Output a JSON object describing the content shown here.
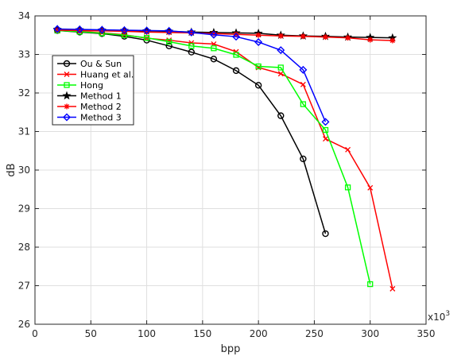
{
  "chart_data": {
    "type": "line",
    "xlabel": "bpp",
    "ylabel": "dB",
    "x_multiplier_label": "x10",
    "x_multiplier_exp": "3",
    "xlim": [
      0,
      350
    ],
    "ylim": [
      26,
      34
    ],
    "xticks": [
      0,
      50,
      100,
      150,
      200,
      250,
      300,
      350
    ],
    "yticks": [
      26,
      27,
      28,
      29,
      30,
      31,
      32,
      33,
      34
    ],
    "grid": true,
    "legend_position": "top-left",
    "series": [
      {
        "name": "Ou & Sun",
        "color": "#000000",
        "marker": "circle",
        "x": [
          20,
          40,
          60,
          80,
          100,
          120,
          140,
          160,
          180,
          200,
          220,
          240,
          260
        ],
        "y": [
          33.62,
          33.58,
          33.54,
          33.47,
          33.37,
          33.22,
          33.06,
          32.88,
          32.58,
          32.2,
          31.41,
          30.29,
          28.35
        ]
      },
      {
        "name": "Huang et al.",
        "color": "#ff0000",
        "marker": "x",
        "x": [
          20,
          40,
          60,
          80,
          100,
          120,
          140,
          160,
          180,
          200,
          220,
          240,
          260,
          280,
          300,
          320
        ],
        "y": [
          33.63,
          33.6,
          33.56,
          33.51,
          33.42,
          33.37,
          33.3,
          33.27,
          33.07,
          32.66,
          32.5,
          32.22,
          30.81,
          30.53,
          29.54,
          26.92
        ]
      },
      {
        "name": "Hong",
        "color": "#00ff00",
        "marker": "square",
        "x": [
          20,
          40,
          60,
          80,
          100,
          120,
          140,
          160,
          180,
          200,
          220,
          240,
          260,
          280,
          300
        ],
        "y": [
          33.62,
          33.59,
          33.55,
          33.5,
          33.43,
          33.33,
          33.22,
          33.16,
          32.99,
          32.69,
          32.66,
          31.71,
          31.04,
          29.55,
          27.04
        ]
      },
      {
        "name": "Method 1",
        "color": "#000000",
        "marker": "star",
        "x": [
          20,
          40,
          60,
          80,
          100,
          120,
          140,
          160,
          180,
          200,
          220,
          240,
          260,
          280,
          300,
          320
        ],
        "y": [
          33.65,
          33.64,
          33.63,
          33.62,
          33.61,
          33.6,
          33.58,
          33.57,
          33.56,
          33.55,
          33.5,
          33.48,
          33.47,
          33.45,
          33.44,
          33.43
        ]
      },
      {
        "name": "Method 2",
        "color": "#ff0000",
        "marker": "asterisk",
        "x": [
          20,
          40,
          60,
          80,
          100,
          120,
          140,
          160,
          180,
          200,
          220,
          240,
          260,
          280,
          300,
          320
        ],
        "y": [
          33.63,
          33.62,
          33.61,
          33.6,
          33.58,
          33.57,
          33.56,
          33.54,
          33.52,
          33.5,
          33.48,
          33.47,
          33.45,
          33.43,
          33.38,
          33.36
        ]
      },
      {
        "name": "Method 3",
        "color": "#0000ff",
        "marker": "diamond",
        "x": [
          20,
          40,
          60,
          80,
          100,
          120,
          140,
          160,
          180,
          200,
          220,
          240,
          260
        ],
        "y": [
          33.66,
          33.65,
          33.64,
          33.63,
          33.62,
          33.61,
          33.57,
          33.51,
          33.46,
          33.32,
          33.11,
          32.6,
          31.25
        ]
      }
    ]
  }
}
